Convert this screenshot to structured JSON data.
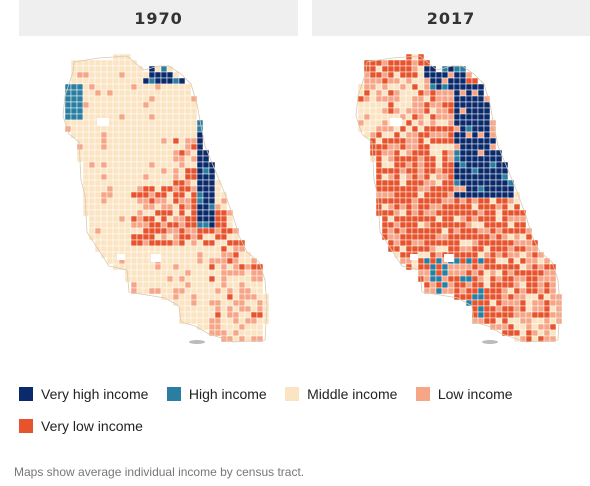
{
  "maps": [
    {
      "year": "1970",
      "profile": "1970"
    },
    {
      "year": "2017",
      "profile": "2017"
    }
  ],
  "legend": [
    {
      "label": "Very high income",
      "color": "#0b2a6b"
    },
    {
      "label": "High income",
      "color": "#2a7ea1"
    },
    {
      "label": "Middle income",
      "color": "#fbe4c2"
    },
    {
      "label": "Low income",
      "color": "#f6a587"
    },
    {
      "label": "Very low income",
      "color": "#e6532c"
    }
  ],
  "caption": "Maps show average individual income by census tract."
}
